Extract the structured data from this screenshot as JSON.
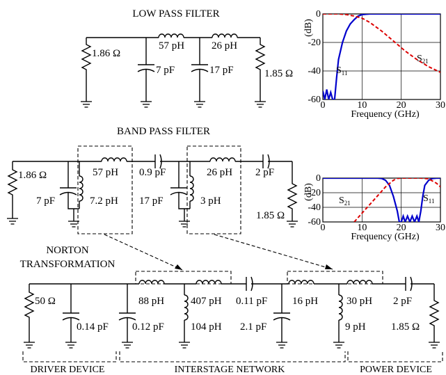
{
  "titles": {
    "lpf": "LOW PASS FILTER",
    "bpf": "BAND PASS FILTER",
    "norton_line1": "NORTON",
    "norton_line2": "TRANSFORMATION"
  },
  "lpf": {
    "r_in": "1.86 Ω",
    "l1": "57 pH",
    "l2": "26 pH",
    "c1": "7 pF",
    "c2": "17 pF",
    "r_out": "1.85 Ω"
  },
  "bpf": {
    "r_in": "1.86 Ω",
    "c_shunt1": "7 pF",
    "l_series1": "57 pH",
    "l_shunt1": "7.2 pH",
    "c_series1": "0.9 pF",
    "c_shunt2": "17 pF",
    "l_series2": "26 pH",
    "l_shunt2": "3 pH",
    "c_series2": "2 pF",
    "r_out": "1.85 Ω"
  },
  "final": {
    "r_in": "50 Ω",
    "c1": "0.14 pF",
    "c2": "0.12 pF",
    "l1": "88 pH",
    "l2": "407 pH",
    "l_shunt1": "104 pH",
    "c_series1": "0.11 pF",
    "c3": "2.1 pF",
    "l3": "16 pH",
    "l4": "30 pH",
    "l_shunt2": "9 pH",
    "c_series2": "2 pF",
    "r_out": "1.85 Ω",
    "groups": {
      "driver": "DRIVER DEVICE",
      "interstage": "INTERSTAGE NETWORK",
      "power": "POWER DEVICE"
    }
  },
  "colors": {
    "s11": "#0000cc",
    "s21": "#dd0000"
  },
  "chart_data": [
    {
      "type": "line",
      "xlabel": "Frequency (GHz)",
      "ylabel": "(dB)",
      "xlim": [
        0,
        30
      ],
      "ylim": [
        -60,
        0
      ],
      "xticks": [
        "0",
        "10",
        "20",
        "30"
      ],
      "yticks": [
        "0",
        "-20",
        "-40",
        "-60"
      ],
      "grid": true,
      "series": [
        {
          "name": "S11",
          "label_main": "S",
          "label_sub": "11",
          "x": [
            0,
            0.5,
            1,
            1.5,
            2,
            2.5,
            3,
            3.5,
            4,
            5,
            6,
            7,
            8,
            9,
            10,
            11,
            12,
            14,
            30
          ],
          "y": [
            -54,
            -60,
            -53,
            -60,
            -55,
            -60,
            -60,
            -45,
            -32,
            -20,
            -12,
            -7,
            -4,
            -1.5,
            -0.5,
            -0.2,
            0,
            0,
            0
          ]
        },
        {
          "name": "S21",
          "label_main": "S",
          "label_sub": "21",
          "x": [
            0,
            4,
            6,
            8,
            10,
            12,
            15,
            18,
            21,
            24,
            27,
            30
          ],
          "y": [
            0,
            0,
            -0.5,
            -1.5,
            -3,
            -6,
            -12,
            -19,
            -26,
            -32,
            -37,
            -41
          ]
        }
      ]
    },
    {
      "type": "line",
      "xlabel": "Frequency (GHz)",
      "ylabel": "(dB)",
      "xlim": [
        0,
        30
      ],
      "ylim": [
        -60,
        0
      ],
      "xticks": [
        "0",
        "10",
        "20",
        "30"
      ],
      "yticks": [
        "0",
        "-20",
        "-40",
        "-60"
      ],
      "grid": true,
      "series": [
        {
          "name": "S11",
          "label_main": "S",
          "label_sub": "11",
          "x": [
            0,
            14,
            15,
            16,
            17,
            18,
            19,
            19.5,
            20,
            20.5,
            21,
            21.6,
            22.2,
            22.8,
            23.4,
            24,
            24.5,
            25,
            25.5,
            26,
            27,
            28,
            29,
            30
          ],
          "y": [
            0,
            0,
            -0.5,
            -3,
            -10,
            -25,
            -45,
            -60,
            -60,
            -52,
            -60,
            -52,
            -60,
            -52,
            -60,
            -52,
            -60,
            -45,
            -25,
            -10,
            -3,
            -0.5,
            0,
            0
          ]
        },
        {
          "name": "S21",
          "label_main": "S",
          "label_sub": "21",
          "x": [
            8,
            10,
            12,
            14,
            16,
            18,
            19,
            20,
            23,
            25,
            27,
            28,
            29,
            30
          ],
          "y": [
            -60,
            -48,
            -36,
            -24,
            -12,
            -3,
            -0.5,
            0,
            0,
            0,
            -1,
            -4,
            -7,
            -12
          ]
        }
      ]
    }
  ]
}
